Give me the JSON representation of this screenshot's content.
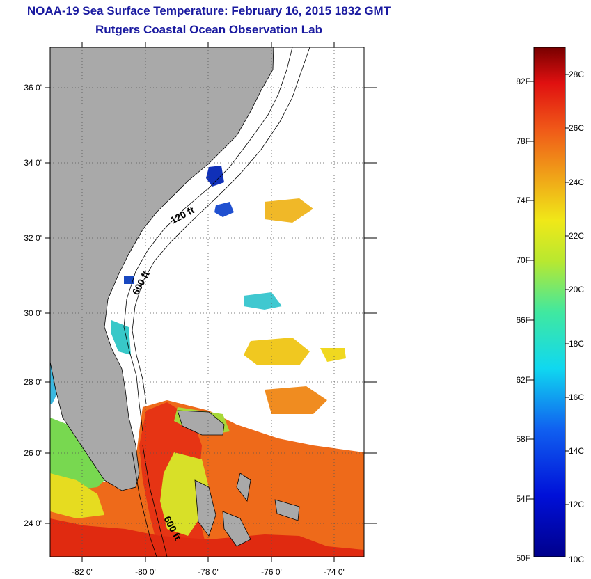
{
  "header": {
    "title": "NOAA-19 Sea Surface Temperature:  February 16, 2015 1832 GMT",
    "subtitle": "Rutgers Coastal Ocean Observation Lab"
  },
  "map": {
    "lat_labels": [
      "36 0'",
      "34 0'",
      "32 0'",
      "30 0'",
      "28 0'",
      "26 0'",
      "24 0'"
    ],
    "lon_labels": [
      "-82 0'",
      "-80 0'",
      "-78 0'",
      "-76 0'",
      "-74 0'"
    ],
    "contour_labels": [
      "120 ft",
      "600 ft",
      "600 ft"
    ]
  },
  "colorbar": {
    "f_labels": [
      "82F",
      "78F",
      "74F",
      "70F",
      "66F",
      "62F",
      "58F",
      "54F",
      "50F"
    ],
    "c_labels": [
      "28C",
      "26C",
      "24C",
      "22C",
      "20C",
      "18C",
      "16C",
      "14C",
      "12C",
      "10C"
    ]
  },
  "colors": {
    "land": "#a8a8a8",
    "title": "#1a1aa0",
    "warm": "#e83010",
    "orange": "#f07818",
    "yellow": "#e8e020",
    "green": "#80d848",
    "cyan": "#20c8e8",
    "blue": "#1838c8",
    "navy": "#101880"
  }
}
